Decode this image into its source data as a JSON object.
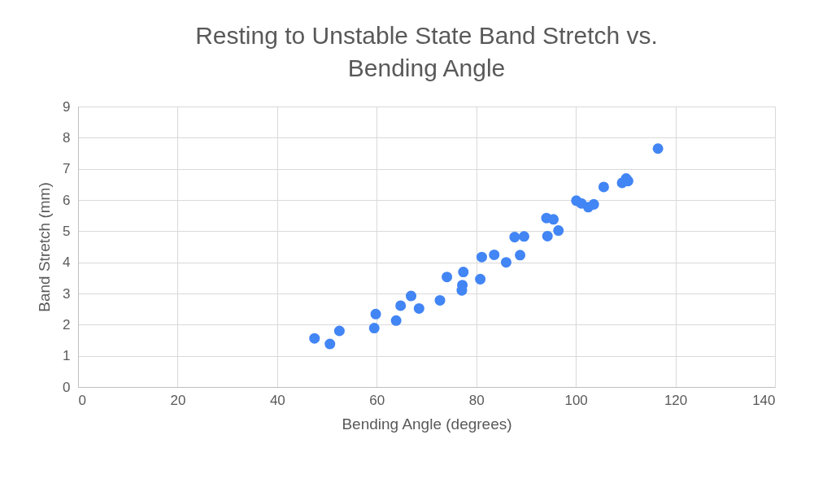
{
  "chart_data": {
    "type": "scatter",
    "title": "Resting to Unstable State Band Stretch vs. Bending Angle",
    "xlabel": "Bending Angle (degrees)",
    "ylabel": "Band Stretch (mm)",
    "x": [
      47.5,
      50.6,
      52.5,
      59.8,
      59.5,
      63.9,
      64.8,
      66.9,
      68.5,
      72.7,
      74.1,
      77.4,
      77.2,
      77.1,
      80.8,
      81.1,
      83.6,
      86.0,
      88.8,
      87.7,
      89.6,
      94.3,
      94.1,
      95.5,
      96.5,
      100.1,
      101.1,
      102.5,
      103.6,
      105.6,
      109.3,
      110.1,
      110.5,
      116.5
    ],
    "series": [
      {
        "color": "#4285f4",
        "values": [
          1.56,
          1.38,
          1.8,
          2.34,
          1.89,
          2.13,
          2.61,
          2.92,
          2.52,
          2.78,
          3.53,
          3.69,
          3.27,
          3.1,
          3.46,
          4.17,
          4.24,
          4.0,
          4.23,
          4.81,
          4.83,
          4.84,
          5.42,
          5.38,
          5.02,
          5.98,
          5.89,
          5.77,
          5.86,
          6.42,
          6.55,
          6.69,
          6.61,
          7.65
        ]
      }
    ],
    "xlim": [
      0,
      140
    ],
    "xticks": [
      0,
      20,
      40,
      60,
      80,
      100,
      120,
      140
    ],
    "ylim": [
      0,
      9
    ],
    "yticks": [
      0,
      1,
      2,
      3,
      4,
      5,
      6,
      7,
      8,
      9
    ],
    "grid": true,
    "marker": "circle",
    "legend": false
  }
}
